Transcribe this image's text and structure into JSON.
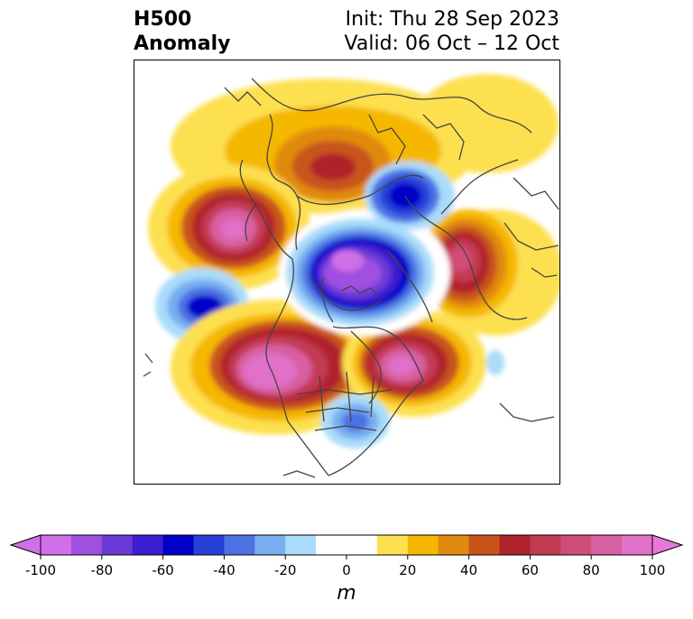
{
  "title": {
    "left_line1": "H500",
    "left_line2": "Anomaly",
    "right_line1": "Init: Thu 28 Sep 2023",
    "right_line2": "Valid: 06 Oct – 12 Oct"
  },
  "colorbar": {
    "unit": "m",
    "ticks": [
      "-100",
      "-80",
      "-60",
      "-40",
      "-20",
      "0",
      "20",
      "40",
      "60",
      "80",
      "100"
    ],
    "levels": [
      -100,
      -90,
      -80,
      -70,
      -60,
      -50,
      -40,
      -30,
      -20,
      -10,
      10,
      20,
      30,
      40,
      50,
      60,
      70,
      80,
      90,
      100
    ],
    "colors": [
      "#a050e0",
      "#6a3ad6",
      "#3a1ed0",
      "#0000c8",
      "#2640d8",
      "#4c72e4",
      "#78aef0",
      "#a9dcfa",
      "#ffffff",
      "#fde050",
      "#f5b700",
      "#e08a10",
      "#c8541a",
      "#b0232a",
      "#c23a52",
      "#d04d78",
      "#d85fa0",
      "#e070c8"
    ],
    "under_color": "#d070e8",
    "over_color": "#e878d8"
  },
  "map": {
    "projection": "north-polar-stereographic",
    "field": "500 hPa geopotential height anomaly",
    "anomaly_features": [
      {
        "region": "Gulf of Alaska / NE Pacific",
        "sign": "positive",
        "peak_m": 90
      },
      {
        "region": "Central North Pacific",
        "sign": "negative",
        "peak_m": -60
      },
      {
        "region": "Western North America",
        "sign": "positive",
        "peak_m": 100
      },
      {
        "region": "Northwestern Atlantic / Eastern Canada",
        "sign": "positive",
        "peak_m": 100
      },
      {
        "region": "Southeastern United States",
        "sign": "negative",
        "peak_m": -40
      },
      {
        "region": "Arctic Ocean / Central Siberia",
        "sign": "negative",
        "peak_m": -90
      },
      {
        "region": "Scandinavia / Barents Sea",
        "sign": "negative",
        "peak_m": -60
      },
      {
        "region": "Eastern Siberia",
        "sign": "positive",
        "peak_m": 70
      },
      {
        "region": "Western Europe / British Isles",
        "sign": "positive",
        "peak_m": 90
      },
      {
        "region": "Eurasia / Mongolia",
        "sign": "positive",
        "peak_m": 30
      }
    ]
  }
}
